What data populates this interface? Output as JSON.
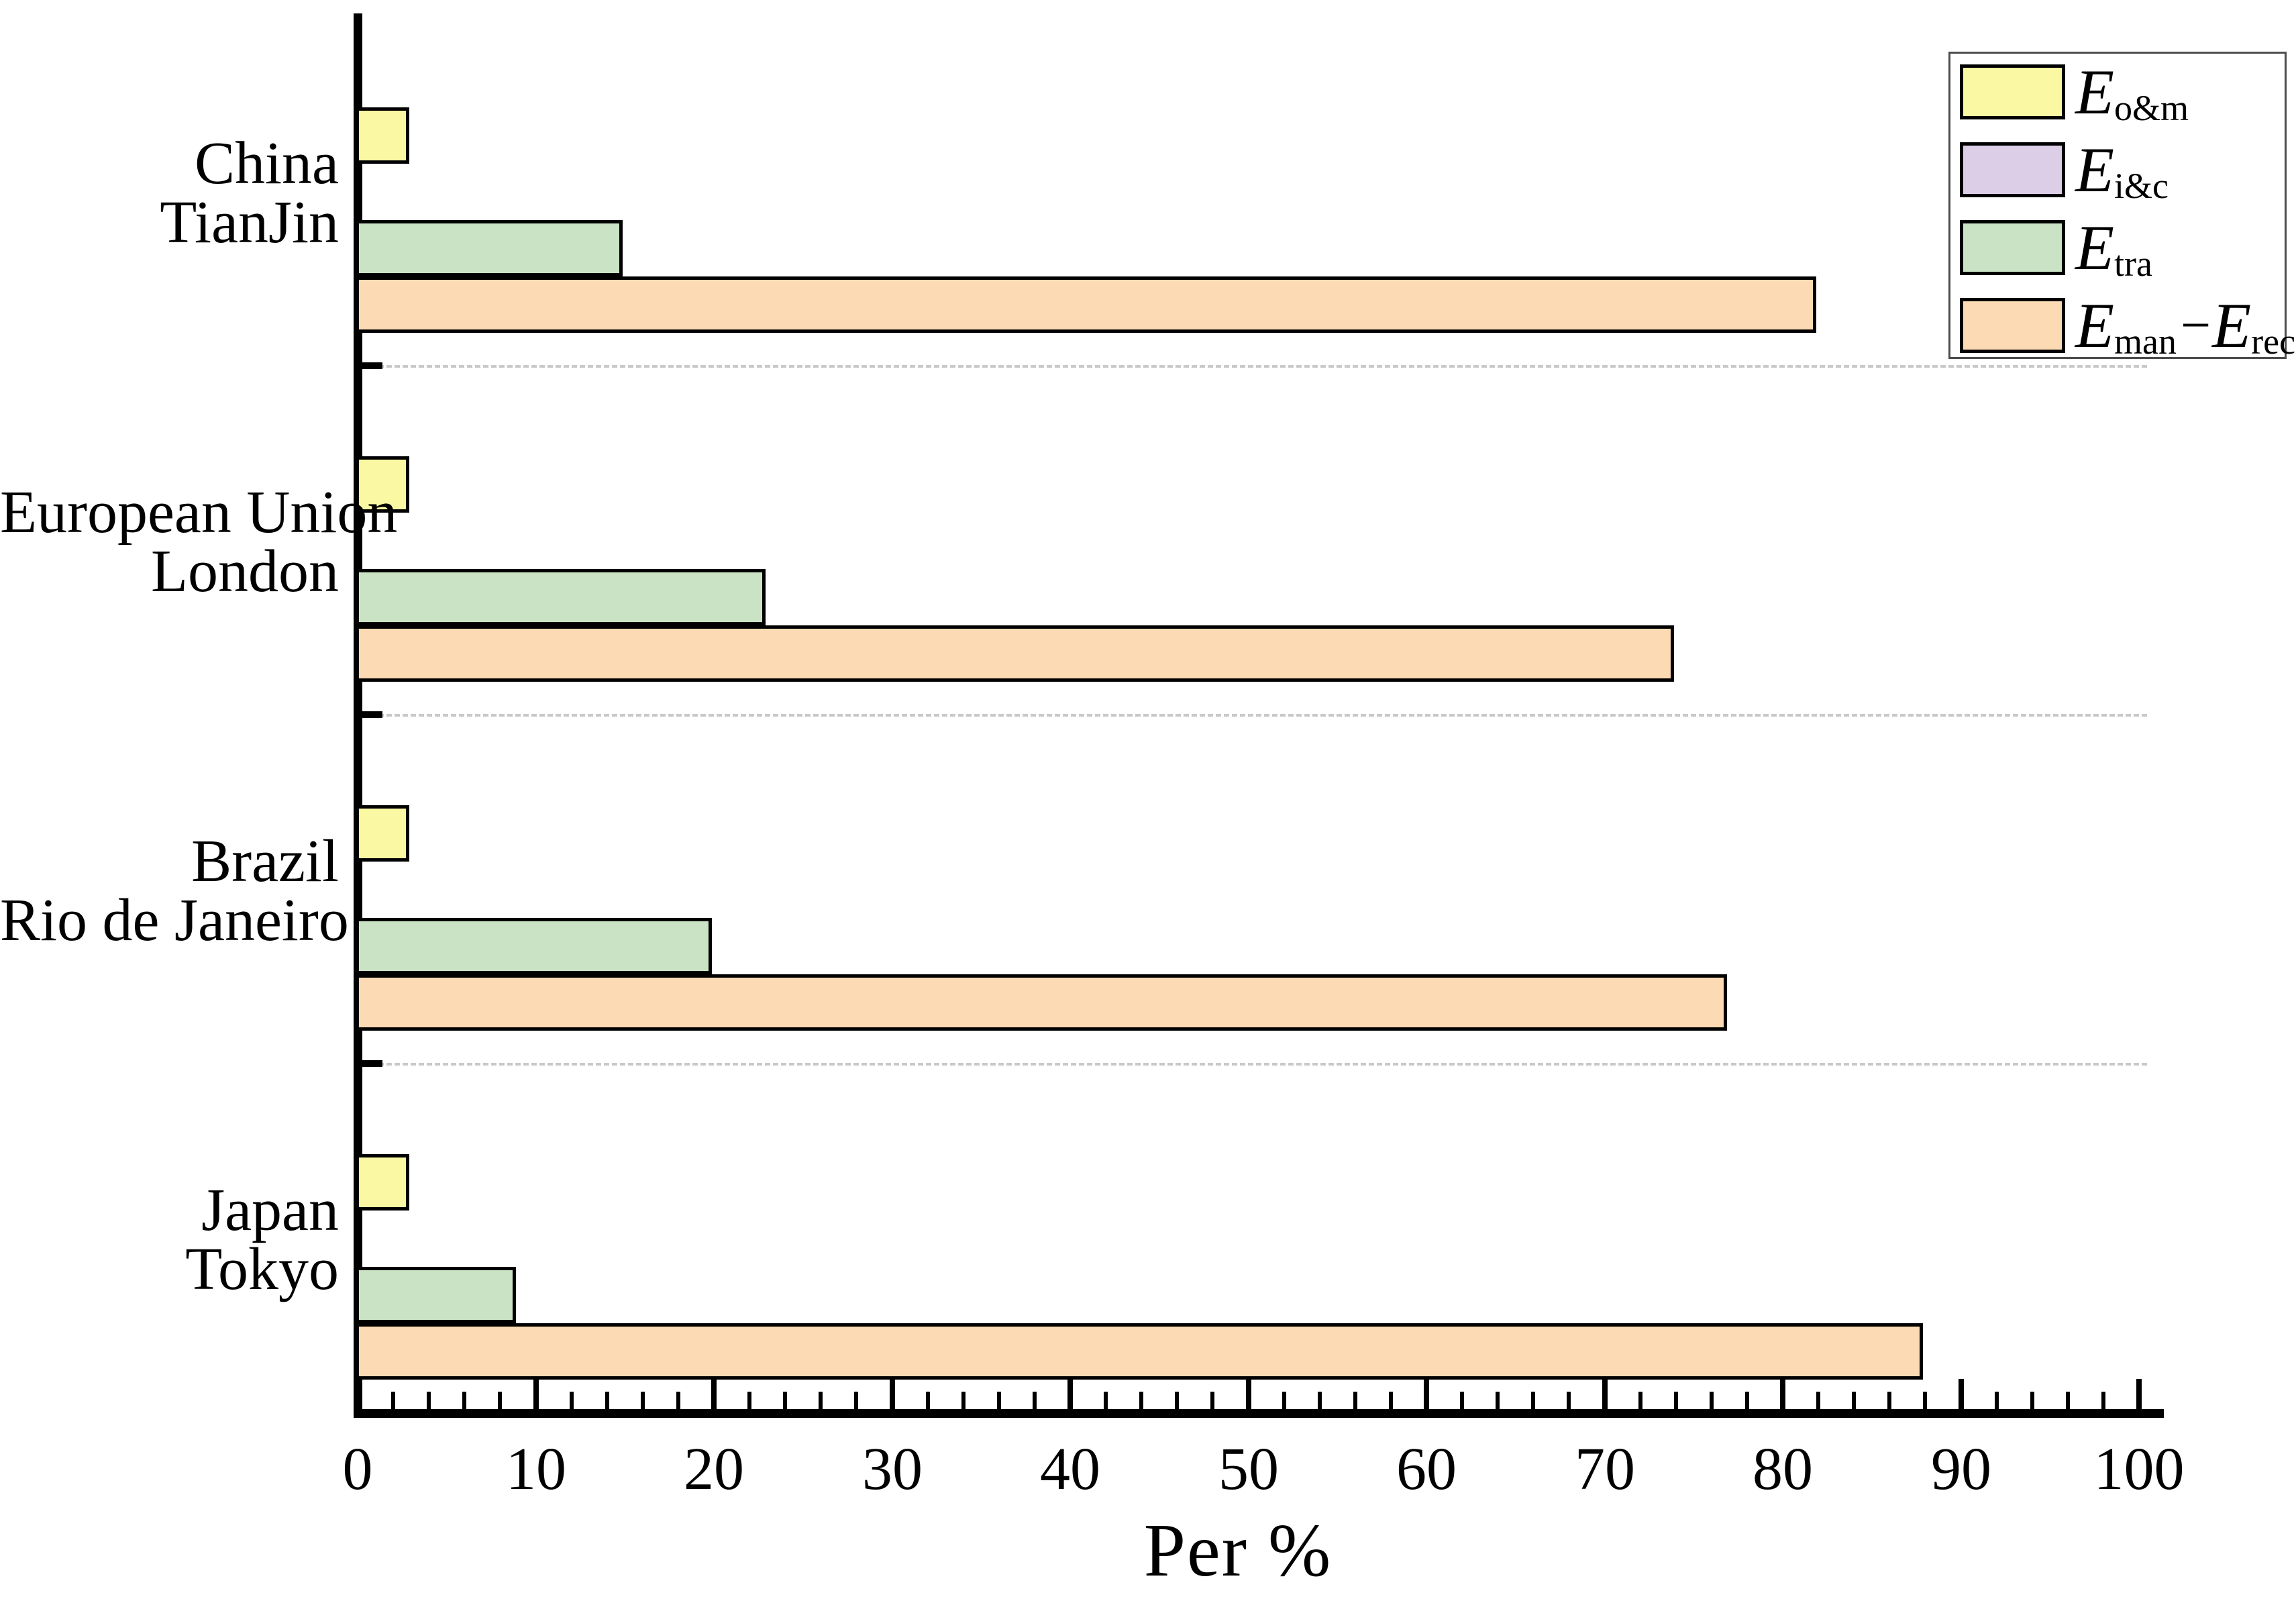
{
  "chart_data": {
    "type": "bar",
    "orientation": "horizontal",
    "title": "",
    "xlabel": "Per %",
    "xlim": [
      0,
      100
    ],
    "x_major_tick_step": 10,
    "x_minor_tick_step": 2,
    "x_tick_labels": [
      "0",
      "10",
      "20",
      "30",
      "40",
      "50",
      "60",
      "70",
      "80",
      "90",
      "100"
    ],
    "grid": "dashed horizontal separators between category groups",
    "legend_position": "top-right",
    "categories": [
      {
        "line1": "China",
        "line2": "TianJin"
      },
      {
        "line1": "European Union",
        "line2": "London"
      },
      {
        "line1": "Brazil",
        "line2": "Rio de Janeiro"
      },
      {
        "line1": "Japan",
        "line2": "Tokyo"
      }
    ],
    "series": [
      {
        "name": "E_o&m",
        "color": "#FAF8A3",
        "values": [
          3,
          3,
          3,
          3
        ],
        "legend_segments": [
          {
            "text": "E",
            "style": "main"
          },
          {
            "text": "o&m",
            "style": "sub"
          }
        ]
      },
      {
        "name": "E_i&c",
        "color": "#DBCEE6",
        "values": [
          0,
          0,
          0,
          0
        ],
        "legend_segments": [
          {
            "text": "E",
            "style": "main"
          },
          {
            "text": "i&c",
            "style": "sub"
          }
        ]
      },
      {
        "name": "E_tra",
        "color": "#C9E3C4",
        "values": [
          15,
          23,
          20,
          9
        ],
        "legend_segments": [
          {
            "text": "E",
            "style": "main"
          },
          {
            "text": "tra",
            "style": "sub"
          }
        ]
      },
      {
        "name": "E_man-E_rec",
        "color": "#FCDAB3",
        "values": [
          82,
          74,
          77,
          88
        ],
        "legend_segments": [
          {
            "text": "E",
            "style": "main"
          },
          {
            "text": "man",
            "style": "sub"
          },
          {
            "text": "−",
            "style": "dash"
          },
          {
            "text": "E",
            "style": "main"
          },
          {
            "text": "rec",
            "style": "sub"
          }
        ]
      }
    ],
    "colors": {
      "bar_border": "#000000",
      "axis": "#000000",
      "separator": "#c9c9c9",
      "legend_border": "#4d4d4d",
      "background": "#ffffff"
    }
  }
}
